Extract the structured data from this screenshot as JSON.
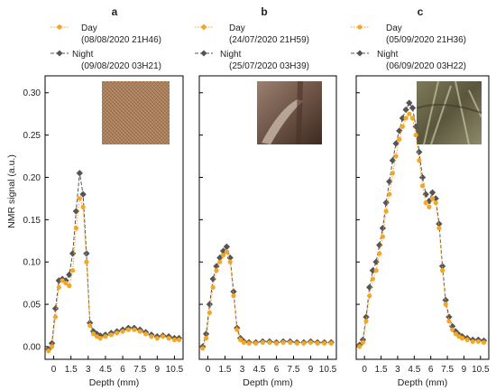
{
  "figure": {
    "ylabel": "NMR signal (a.u.)",
    "colors": {
      "day": "#F5A623",
      "night": "#555555"
    }
  },
  "chart_data": [
    {
      "type": "line",
      "panel": "a",
      "xlabel": "Depth (mm)",
      "ylabel": "NMR signal (a.u.)",
      "xlim": [
        -0.75,
        11.25
      ],
      "ylim": [
        -0.015,
        0.32
      ],
      "x_ticks": [
        "0",
        "1.5",
        "3",
        "4.5",
        "6",
        "7.5",
        "9",
        "10.5"
      ],
      "y_ticks": [
        "0.00",
        "0.05",
        "0.10",
        "0.15",
        "0.20",
        "0.25",
        "0.30"
      ],
      "legend": {
        "placement": "top",
        "entries": [
          [
            "Day",
            "(08/08/2020 21H46)"
          ],
          [
            "Night",
            "(09/08/2020 03H21)"
          ]
        ]
      },
      "inset_image": "soil-photo-dry-fibrous",
      "series": [
        {
          "name": "Day",
          "color": "#F5A623",
          "marker": "circle",
          "points": [
            [
              -0.45,
              -0.005
            ],
            [
              -0.15,
              0.0
            ],
            [
              0.15,
              0.035
            ],
            [
              0.45,
              0.07
            ],
            [
              0.75,
              0.078
            ],
            [
              1.05,
              0.075
            ],
            [
              1.35,
              0.072
            ],
            [
              1.65,
              0.09
            ],
            [
              1.95,
              0.14
            ],
            [
              2.25,
              0.175
            ],
            [
              2.55,
              0.165
            ],
            [
              2.85,
              0.1
            ],
            [
              3.15,
              0.025
            ],
            [
              3.45,
              0.015
            ],
            [
              3.75,
              0.012
            ],
            [
              4.05,
              0.01
            ],
            [
              4.5,
              0.012
            ],
            [
              5.0,
              0.014
            ],
            [
              5.5,
              0.016
            ],
            [
              6.0,
              0.018
            ],
            [
              6.5,
              0.02
            ],
            [
              7.0,
              0.02
            ],
            [
              7.5,
              0.018
            ],
            [
              8.0,
              0.015
            ],
            [
              8.5,
              0.012
            ],
            [
              9.0,
              0.01
            ],
            [
              9.5,
              0.012
            ],
            [
              10.0,
              0.01
            ],
            [
              10.5,
              0.008
            ],
            [
              10.9,
              0.008
            ]
          ]
        },
        {
          "name": "Night",
          "color": "#555555",
          "marker": "diamond",
          "points": [
            [
              -0.45,
              -0.003
            ],
            [
              -0.15,
              0.004
            ],
            [
              0.15,
              0.045
            ],
            [
              0.45,
              0.078
            ],
            [
              0.75,
              0.08
            ],
            [
              1.05,
              0.078
            ],
            [
              1.35,
              0.085
            ],
            [
              1.65,
              0.11
            ],
            [
              1.95,
              0.16
            ],
            [
              2.25,
              0.205
            ],
            [
              2.55,
              0.18
            ],
            [
              2.85,
              0.11
            ],
            [
              3.15,
              0.028
            ],
            [
              3.45,
              0.018
            ],
            [
              3.75,
              0.015
            ],
            [
              4.05,
              0.013
            ],
            [
              4.5,
              0.014
            ],
            [
              5.0,
              0.016
            ],
            [
              5.5,
              0.018
            ],
            [
              6.0,
              0.02
            ],
            [
              6.5,
              0.022
            ],
            [
              7.0,
              0.022
            ],
            [
              7.5,
              0.02
            ],
            [
              8.0,
              0.017
            ],
            [
              8.5,
              0.014
            ],
            [
              9.0,
              0.012
            ],
            [
              9.5,
              0.013
            ],
            [
              10.0,
              0.012
            ],
            [
              10.5,
              0.01
            ],
            [
              10.9,
              0.01
            ]
          ]
        }
      ]
    },
    {
      "type": "line",
      "panel": "b",
      "xlabel": "Depth (mm)",
      "ylabel": "",
      "xlim": [
        -0.75,
        11.25
      ],
      "ylim": [
        -0.015,
        0.32
      ],
      "x_ticks": [
        "0",
        "1.5",
        "3",
        "4.5",
        "6",
        "7.5",
        "9",
        "10.5"
      ],
      "y_ticks": [],
      "legend": {
        "placement": "top",
        "entries": [
          [
            "Day",
            "(24/07/2020 21H59)"
          ],
          [
            "Night",
            "(25/07/2020 03H39)"
          ]
        ]
      },
      "inset_image": "soil-photo-dark-wet",
      "series": [
        {
          "name": "Day",
          "color": "#F5A623",
          "marker": "circle",
          "points": [
            [
              -0.45,
              -0.002
            ],
            [
              -0.15,
              0.01
            ],
            [
              0.15,
              0.04
            ],
            [
              0.45,
              0.07
            ],
            [
              0.75,
              0.09
            ],
            [
              1.05,
              0.1
            ],
            [
              1.35,
              0.108
            ],
            [
              1.65,
              0.112
            ],
            [
              1.95,
              0.1
            ],
            [
              2.25,
              0.06
            ],
            [
              2.55,
              0.02
            ],
            [
              2.85,
              0.008
            ],
            [
              3.15,
              0.005
            ],
            [
              3.6,
              0.004
            ],
            [
              4.2,
              0.004
            ],
            [
              4.8,
              0.005
            ],
            [
              5.4,
              0.005
            ],
            [
              6.0,
              0.004
            ],
            [
              6.6,
              0.005
            ],
            [
              7.2,
              0.005
            ],
            [
              7.8,
              0.004
            ],
            [
              8.4,
              0.004
            ],
            [
              9.0,
              0.005
            ],
            [
              9.6,
              0.004
            ],
            [
              10.2,
              0.004
            ],
            [
              10.8,
              0.004
            ]
          ]
        },
        {
          "name": "Night",
          "color": "#555555",
          "marker": "diamond",
          "points": [
            [
              -0.45,
              0.0
            ],
            [
              -0.15,
              0.015
            ],
            [
              0.15,
              0.05
            ],
            [
              0.45,
              0.08
            ],
            [
              0.75,
              0.095
            ],
            [
              1.05,
              0.105
            ],
            [
              1.35,
              0.113
            ],
            [
              1.65,
              0.118
            ],
            [
              1.95,
              0.105
            ],
            [
              2.25,
              0.065
            ],
            [
              2.55,
              0.022
            ],
            [
              2.85,
              0.01
            ],
            [
              3.15,
              0.006
            ],
            [
              3.6,
              0.005
            ],
            [
              4.2,
              0.005
            ],
            [
              4.8,
              0.006
            ],
            [
              5.4,
              0.006
            ],
            [
              6.0,
              0.005
            ],
            [
              6.6,
              0.006
            ],
            [
              7.2,
              0.006
            ],
            [
              7.8,
              0.005
            ],
            [
              8.4,
              0.005
            ],
            [
              9.0,
              0.006
            ],
            [
              9.6,
              0.005
            ],
            [
              10.2,
              0.005
            ],
            [
              10.8,
              0.005
            ]
          ]
        }
      ]
    },
    {
      "type": "line",
      "panel": "c",
      "xlabel": "Depth (mm)",
      "ylabel": "",
      "xlim": [
        -0.75,
        11.25
      ],
      "ylim": [
        -0.015,
        0.32
      ],
      "x_ticks": [
        "0",
        "1.5",
        "3",
        "4.5",
        "6",
        "7.5",
        "9",
        "10.5"
      ],
      "y_ticks": [],
      "legend": {
        "placement": "top",
        "entries": [
          [
            "Day",
            "(05/09/2020 21H36)"
          ],
          [
            "Night",
            "(06/09/2020 03H22)"
          ]
        ]
      },
      "inset_image": "soil-photo-roots",
      "series": [
        {
          "name": "Day",
          "color": "#F5A623",
          "marker": "circle",
          "points": [
            [
              -0.45,
              0.0
            ],
            [
              -0.15,
              0.005
            ],
            [
              0.15,
              0.03
            ],
            [
              0.45,
              0.06
            ],
            [
              0.75,
              0.08
            ],
            [
              1.05,
              0.09
            ],
            [
              1.35,
              0.11
            ],
            [
              1.65,
              0.13
            ],
            [
              1.95,
              0.16
            ],
            [
              2.25,
              0.18
            ],
            [
              2.55,
              0.205
            ],
            [
              2.85,
              0.225
            ],
            [
              3.15,
              0.245
            ],
            [
              3.45,
              0.26
            ],
            [
              3.75,
              0.27
            ],
            [
              4.05,
              0.275
            ],
            [
              4.35,
              0.27
            ],
            [
              4.65,
              0.25
            ],
            [
              4.95,
              0.22
            ],
            [
              5.25,
              0.19
            ],
            [
              5.55,
              0.17
            ],
            [
              5.85,
              0.165
            ],
            [
              6.15,
              0.175
            ],
            [
              6.45,
              0.17
            ],
            [
              6.75,
              0.14
            ],
            [
              7.05,
              0.09
            ],
            [
              7.35,
              0.05
            ],
            [
              7.65,
              0.03
            ],
            [
              7.95,
              0.02
            ],
            [
              8.25,
              0.015
            ],
            [
              8.55,
              0.012
            ],
            [
              8.85,
              0.01
            ],
            [
              9.3,
              0.008
            ],
            [
              9.8,
              0.006
            ],
            [
              10.3,
              0.006
            ],
            [
              10.8,
              0.005
            ]
          ]
        },
        {
          "name": "Night",
          "color": "#555555",
          "marker": "diamond",
          "points": [
            [
              -0.45,
              0.002
            ],
            [
              -0.15,
              0.008
            ],
            [
              0.15,
              0.035
            ],
            [
              0.45,
              0.07
            ],
            [
              0.75,
              0.09
            ],
            [
              1.05,
              0.1
            ],
            [
              1.35,
              0.12
            ],
            [
              1.65,
              0.14
            ],
            [
              1.95,
              0.17
            ],
            [
              2.25,
              0.195
            ],
            [
              2.55,
              0.22
            ],
            [
              2.85,
              0.24
            ],
            [
              3.15,
              0.255
            ],
            [
              3.45,
              0.27
            ],
            [
              3.75,
              0.28
            ],
            [
              4.05,
              0.288
            ],
            [
              4.35,
              0.282
            ],
            [
              4.65,
              0.26
            ],
            [
              4.95,
              0.23
            ],
            [
              5.25,
              0.2
            ],
            [
              5.55,
              0.18
            ],
            [
              5.85,
              0.172
            ],
            [
              6.15,
              0.182
            ],
            [
              6.45,
              0.175
            ],
            [
              6.75,
              0.145
            ],
            [
              7.05,
              0.095
            ],
            [
              7.35,
              0.055
            ],
            [
              7.65,
              0.035
            ],
            [
              7.95,
              0.024
            ],
            [
              8.25,
              0.018
            ],
            [
              8.55,
              0.014
            ],
            [
              8.85,
              0.012
            ],
            [
              9.3,
              0.01
            ],
            [
              9.8,
              0.008
            ],
            [
              10.3,
              0.008
            ],
            [
              10.8,
              0.007
            ]
          ]
        }
      ]
    }
  ]
}
